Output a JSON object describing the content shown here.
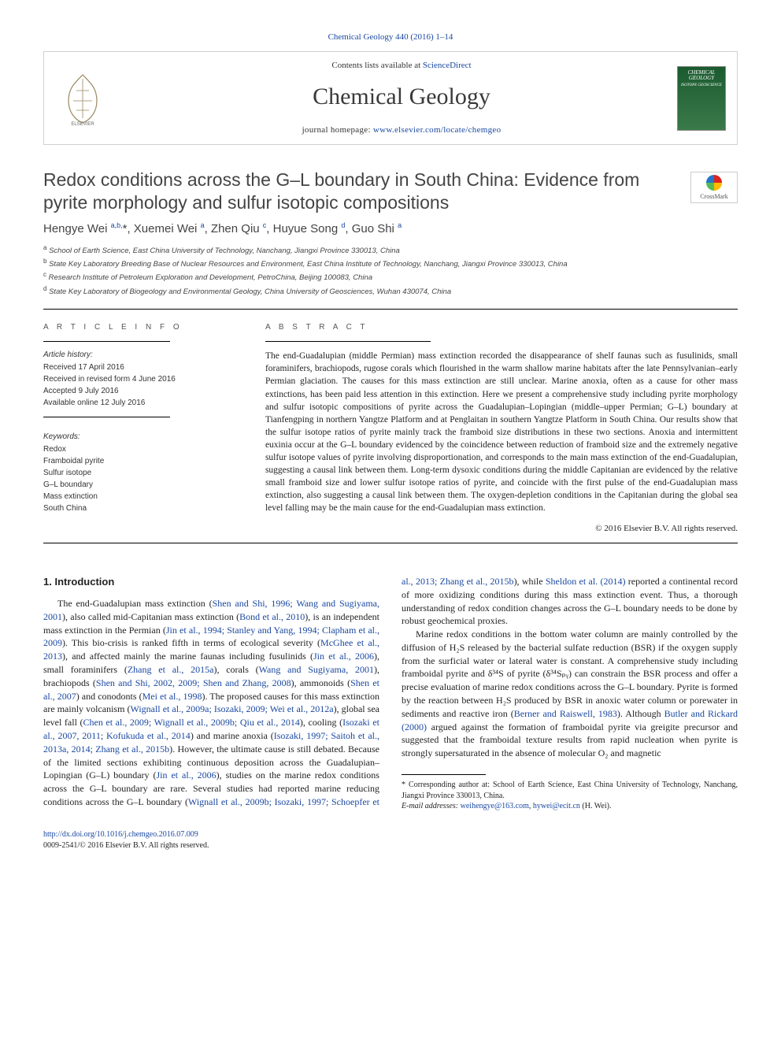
{
  "journal_ref": "Chemical Geology 440 (2016) 1–14",
  "masthead": {
    "contents_prefix": "Contents lists available at ",
    "contents_link": "ScienceDirect",
    "journal_title": "Chemical Geology",
    "homepage_prefix": "journal homepage: ",
    "homepage_link": "www.elsevier.com/locate/chemgeo",
    "cover_title": "CHEMICAL GEOLOGY",
    "cover_sub": "ISOTOPE GEOSCIENCE"
  },
  "title": "Redox conditions across the G–L boundary in South China: Evidence from pyrite morphology and sulfur isotopic compositions",
  "crossmark_label": "CrossMark",
  "authors_html": "Hengye Wei <sup>a,b,</sup>*, Xuemei Wei <sup>a</sup>, Zhen Qiu <sup>c</sup>, Huyue Song <sup>d</sup>, Guo Shi <sup>a</sup>",
  "affiliations": [
    {
      "sup": "a",
      "text": "School of Earth Science, East China University of Technology, Nanchang, Jiangxi Province 330013, China"
    },
    {
      "sup": "b",
      "text": "State Key Laboratory Breeding Base of Nuclear Resources and Environment, East China Institute of Technology, Nanchang, Jiangxi Province 330013, China"
    },
    {
      "sup": "c",
      "text": "Research Institute of Petroleum Exploration and Development, PetroChina, Beijing 100083, China"
    },
    {
      "sup": "d",
      "text": "State Key Laboratory of Biogeology and Environmental Geology, China University of Geosciences, Wuhan 430074, China"
    }
  ],
  "article_info": {
    "heading": "A R T I C L E   I N F O",
    "history_label": "Article history:",
    "history": [
      "Received 17 April 2016",
      "Received in revised form 4 June 2016",
      "Accepted 9 July 2016",
      "Available online 12 July 2016"
    ],
    "keywords_label": "Keywords:",
    "keywords": [
      "Redox",
      "Framboidal pyrite",
      "Sulfur isotope",
      "G–L boundary",
      "Mass extinction",
      "South China"
    ]
  },
  "abstract": {
    "heading": "A B S T R A C T",
    "text": "The end-Guadalupian (middle Permian) mass extinction recorded the disappearance of shelf faunas such as fusulinids, small foraminifers, brachiopods, rugose corals which flourished in the warm shallow marine habitats after the late Pennsylvanian–early Permian glaciation. The causes for this mass extinction are still unclear. Marine anoxia, often as a cause for other mass extinctions, has been paid less attention in this extinction. Here we present a comprehensive study including pyrite morphology and sulfur isotopic compositions of pyrite across the Guadalupian–Lopingian (middle–upper Permian; G–L) boundary at Tianfengping in northern Yangtze Platform and at Penglaitan in southern Yangtze Platform in South China. Our results show that the sulfur isotope ratios of pyrite mainly track the framboid size distributions in these two sections. Anoxia and intermittent euxinia occur at the G–L boundary evidenced by the coincidence between reduction of framboid size and the extremely negative sulfur isotope values of pyrite involving disproportionation, and corresponds to the main mass extinction of the end-Guadalupian, suggesting a causal link between them. Long-term dysoxic conditions during the middle Capitanian are evidenced by the relative small framboid size and lower sulfur isotope ratios of pyrite, and coincide with the first pulse of the end-Guadalupian mass extinction, also suggesting a causal link between them. The oxygen-depletion conditions in the Capitanian during the global sea level falling may be the main cause for the end-Guadalupian mass extinction.",
    "copyright": "© 2016 Elsevier B.V. All rights reserved."
  },
  "intro": {
    "heading": "1. Introduction",
    "p1a": "The end-Guadalupian mass extinction (",
    "r1": "Shen and Shi, 1996; Wang and Sugiyama, 2001",
    "p1b": "), also called mid-Capitanian mass extinction (",
    "r2": "Bond et al., 2010",
    "p1c": "), is an independent mass extinction in the Permian (",
    "r3": "Jin et al., 1994; Stanley and Yang, 1994; Clapham et al., 2009",
    "p1d": "). This bio-crisis is ranked fifth in terms of ecological severity (",
    "r4": "McGhee et al., 2013",
    "p1e": "), and affected mainly the marine faunas including fusulinids (",
    "r5": "Jin et al., 2006",
    "p1f": "), small foraminifers (",
    "r6": "Zhang et al., 2015a",
    "p1g": "), corals (",
    "r7": "Wang and Sugiyama, 2001",
    "p1h": "), brachiopods (",
    "r8": "Shen and Shi, 2002, 2009; Shen and Zhang, 2008",
    "p1i": "), ammonoids (",
    "r9": "Shen et al., 2007",
    "p1j": ") and conodonts (",
    "r10": "Mei et al., 1998",
    "p1k": "). The proposed causes for this mass extinction are mainly volcanism (",
    "r11": "Wignall et al., 2009a; Isozaki, 2009; Wei et al., 2012a",
    "p1l": "), global sea level fall (",
    "r12": "Chen et al., 2009; Wignall et al., 2009b; Qiu et al., 2014",
    "p1m": "), cooling (",
    "r13": "Isozaki et al., 2007, 2011; Kofukuda et al., 2014",
    "p1n": ") and marine anoxia (",
    "r14": "Isozaki, 1997; Saitoh et al., 2013a, 2014; Zhang et al., 2015b",
    "p1o": "). However, the ultimate cause is still debated. Because of the limited ",
    "p2a": "sections exhibiting continuous deposition across the Guadalupian–Lopingian (G–L) boundary (",
    "r15": "Jin et al., 2006",
    "p2b": "), studies on the marine redox conditions across the G–L boundary are rare. Several studies had reported marine reducing conditions across the G–L boundary (",
    "r16": "Wignall et al., 2009b; Isozaki, 1997; Schoepfer et al., 2013; Zhang et al., 2015b",
    "p2c": "), while ",
    "r17": "Sheldon et al. (2014)",
    "p2d": " reported a continental record of more oxidizing conditions during this mass extinction event. Thus, a thorough understanding of redox condition changes across the G–L boundary needs to be done by robust geochemical proxies.",
    "p3a": "Marine redox conditions in the bottom water column are mainly controlled by the diffusion of H₂S released by the bacterial sulfate reduction (BSR) if the oxygen supply from the surficial water or lateral water is constant. A comprehensive study including framboidal pyrite and δ³⁴S of pyrite (δ³⁴Sₚᵧ) can constrain the BSR process and offer a precise evaluation of marine redox conditions across the G–L boundary. Pyrite is formed by the reaction between H₂S produced by BSR in anoxic water column or porewater in sediments and reactive iron (",
    "r18": "Berner and Raiswell, 1983",
    "p3b": "). Although ",
    "r19": "Butler and Rickard (2000)",
    "p3c": " argued against the formation of framboidal pyrite via greigite precursor and suggested that the framboidal texture results from rapid nucleation when pyrite is strongly supersaturated in the absence of molecular O₂ and magnetic"
  },
  "footnote": {
    "corr": "* Corresponding author at: School of Earth Science, East China University of Technology, Nanchang, Jiangxi Province 330013, China.",
    "email_label": "E-mail addresses: ",
    "email1": "weihengye@163.com",
    "email_sep": ", ",
    "email2": "hywei@ecit.cn",
    "email_tail": " (H. Wei)."
  },
  "footer": {
    "doi": "http://dx.doi.org/10.1016/j.chemgeo.2016.07.009",
    "issn_line": "0009-2541/© 2016 Elsevier B.V. All rights reserved."
  },
  "colors": {
    "link": "#1a48a0",
    "text": "#222222",
    "rule": "#000000",
    "cover_bg": "#2f6b3d"
  }
}
